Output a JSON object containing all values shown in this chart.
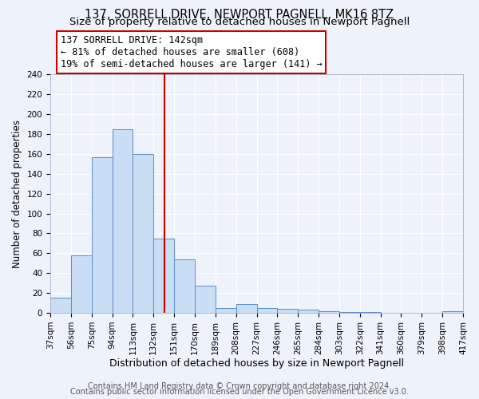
{
  "title": "137, SORRELL DRIVE, NEWPORT PAGNELL, MK16 8TZ",
  "subtitle": "Size of property relative to detached houses in Newport Pagnell",
  "xlabel": "Distribution of detached houses by size in Newport Pagnell",
  "ylabel": "Number of detached properties",
  "bar_left_edges": [
    37,
    56,
    75,
    94,
    113,
    132,
    151,
    170,
    189,
    208,
    227,
    246,
    265,
    284,
    303,
    322,
    341,
    360,
    379,
    398
  ],
  "bar_heights": [
    15,
    58,
    157,
    185,
    160,
    75,
    54,
    27,
    5,
    9,
    5,
    4,
    3,
    2,
    1,
    1,
    0,
    0,
    0,
    2
  ],
  "bin_width": 19,
  "tick_labels": [
    "37sqm",
    "56sqm",
    "75sqm",
    "94sqm",
    "113sqm",
    "132sqm",
    "151sqm",
    "170sqm",
    "189sqm",
    "208sqm",
    "227sqm",
    "246sqm",
    "265sqm",
    "284sqm",
    "303sqm",
    "322sqm",
    "341sqm",
    "360sqm",
    "379sqm",
    "398sqm",
    "417sqm"
  ],
  "vline_x": 142,
  "vline_color": "#cc0000",
  "bar_facecolor": "#c9ddf5",
  "bar_edgecolor": "#5b8ec4",
  "annotation_title": "137 SORRELL DRIVE: 142sqm",
  "annotation_line1": "← 81% of detached houses are smaller (608)",
  "annotation_line2": "19% of semi-detached houses are larger (141) →",
  "annotation_box_color": "#ffffff",
  "annotation_box_edgecolor": "#cc0000",
  "ylim": [
    0,
    240
  ],
  "yticks": [
    0,
    20,
    40,
    60,
    80,
    100,
    120,
    140,
    160,
    180,
    200,
    220,
    240
  ],
  "background_color": "#eef2fb",
  "grid_color": "#ffffff",
  "footer_line1": "Contains HM Land Registry data © Crown copyright and database right 2024.",
  "footer_line2": "Contains public sector information licensed under the Open Government Licence v3.0.",
  "title_fontsize": 10.5,
  "subtitle_fontsize": 9.5,
  "xlabel_fontsize": 9,
  "ylabel_fontsize": 8.5,
  "tick_fontsize": 7.5,
  "footer_fontsize": 7,
  "annot_fontsize": 8.5
}
